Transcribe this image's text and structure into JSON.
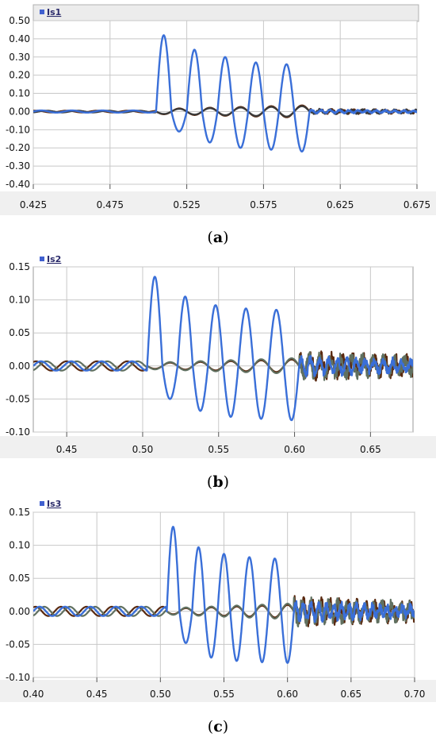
{
  "figure": {
    "colors": {
      "background": "#ffffff",
      "plot_area": "#ffffff",
      "grid": "#c8c8c8",
      "axis_band": "#f0f0f0",
      "header_band": "#ececec",
      "legend_swatch": "#4060d0",
      "series": [
        "#3a6fd8",
        "#3a3a3a",
        "#5a2a10",
        "#607060"
      ]
    }
  },
  "chart_data": [
    {
      "type": "line",
      "legend_label": "Is1",
      "caption_letter": "a",
      "grid": true,
      "legend_position": "top-left",
      "ylim": [
        -0.4,
        0.5
      ],
      "yticks": [
        "0.50",
        "0.40",
        "0.30",
        "0.20",
        "0.10",
        "0.00",
        "-0.10",
        "-0.20",
        "-0.30",
        "-0.40"
      ],
      "xlim": [
        0.425,
        0.675
      ],
      "xticks": [
        "0.425",
        "0.475",
        "0.525",
        "0.575",
        "0.625",
        "0.675"
      ],
      "series": [
        {
          "color": "#3a6fd8",
          "role": "fault-current",
          "peaks": [
            0.42,
            0.34,
            0.3,
            0.27,
            0.26
          ],
          "troughs": [
            -0.11,
            -0.17,
            -0.2,
            -0.21,
            -0.22
          ],
          "fault_start": 0.505,
          "fault_end": 0.605,
          "pre_amp": 0.006,
          "post_amp": 0.008
        },
        {
          "color": "#5a2a10",
          "role": "phase-2",
          "fault_amp": 0.035,
          "pre_amp": 0.005,
          "post_amp": 0.01
        },
        {
          "color": "#3a3a3a",
          "role": "phase-3",
          "fault_amp": 0.03,
          "pre_amp": 0.005,
          "post_amp": 0.01
        }
      ]
    },
    {
      "type": "line",
      "legend_label": "Is2",
      "caption_letter": "b",
      "grid": true,
      "legend_position": "top-left",
      "ylim": [
        -0.1,
        0.15
      ],
      "yticks": [
        "0.15",
        "0.10",
        "0.05",
        "0.00",
        "-0.05",
        "-0.10"
      ],
      "xlim": [
        0.428,
        0.678
      ],
      "xticks": [
        "0.45",
        "0.50",
        "0.55",
        "0.60",
        "0.65"
      ],
      "series": [
        {
          "color": "#3a6fd8",
          "role": "fault-current",
          "peaks": [
            0.135,
            0.105,
            0.092,
            0.087,
            0.085
          ],
          "troughs": [
            -0.05,
            -0.068,
            -0.077,
            -0.08,
            -0.082
          ],
          "fault_start": 0.503,
          "fault_end": 0.603,
          "pre_amp": 0.007,
          "post_amp": 0.012
        },
        {
          "color": "#5a2a10",
          "role": "phase-2",
          "fault_amp": 0.01,
          "pre_amp": 0.007,
          "post_amp": 0.015
        },
        {
          "color": "#607060",
          "role": "phase-3",
          "fault_amp": 0.012,
          "pre_amp": 0.007,
          "post_amp": 0.015
        }
      ]
    },
    {
      "type": "line",
      "legend_label": "Is3",
      "caption_letter": "c",
      "grid": true,
      "legend_position": "top-left",
      "ylim": [
        -0.1,
        0.15
      ],
      "yticks": [
        "0.15",
        "0.10",
        "0.05",
        "0.00",
        "-0.05",
        "-0.10"
      ],
      "xlim": [
        0.4,
        0.7
      ],
      "xticks": [
        "0.40",
        "0.45",
        "0.50",
        "0.55",
        "0.60",
        "0.65",
        "0.70"
      ],
      "series": [
        {
          "color": "#3a6fd8",
          "role": "fault-current",
          "peaks": [
            0.128,
            0.097,
            0.087,
            0.082,
            0.08
          ],
          "troughs": [
            -0.048,
            -0.07,
            -0.075,
            -0.077,
            -0.078
          ],
          "fault_start": 0.505,
          "fault_end": 0.605,
          "pre_amp": 0.007,
          "post_amp": 0.012
        },
        {
          "color": "#5a2a10",
          "role": "phase-2",
          "fault_amp": 0.01,
          "pre_amp": 0.007,
          "post_amp": 0.015
        },
        {
          "color": "#607060",
          "role": "phase-3",
          "fault_amp": 0.012,
          "pre_amp": 0.007,
          "post_amp": 0.015
        }
      ]
    }
  ]
}
